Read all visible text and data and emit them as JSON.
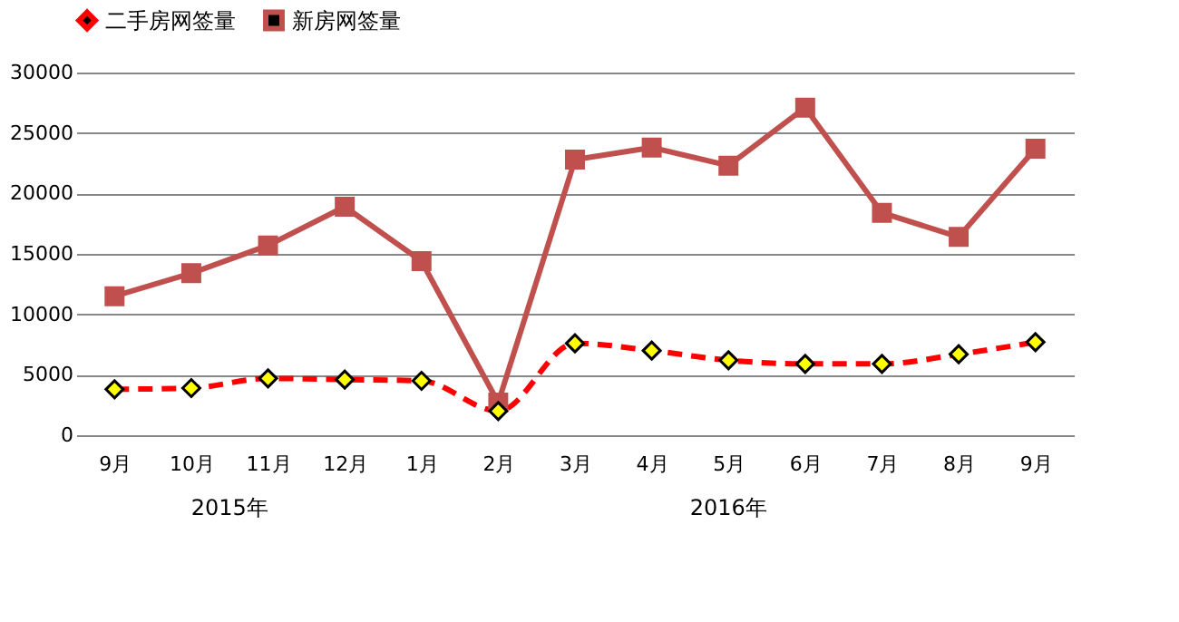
{
  "chart_data": {
    "type": "line",
    "categories": [
      "9月",
      "10月",
      "11月",
      "12月",
      "1月",
      "2月",
      "3月",
      "4月",
      "5月",
      "6月",
      "7月",
      "8月",
      "9月"
    ],
    "series": [
      {
        "name": "二手房网签量",
        "color": "#ff0000",
        "marker": "diamond",
        "line_style": "dashed",
        "values": [
          3800,
          3900,
          4700,
          4600,
          4500,
          2000,
          7600,
          7000,
          6200,
          5900,
          5900,
          6700,
          7700
        ]
      },
      {
        "name": "新房网签量",
        "color": "#c0504d",
        "marker": "square",
        "line_style": "solid",
        "values": [
          11500,
          13400,
          15700,
          18900,
          14400,
          2700,
          22800,
          23800,
          22300,
          27100,
          18400,
          16400,
          23700
        ]
      }
    ],
    "ylim": [
      0,
      30000
    ],
    "yticks": [
      0,
      5000,
      10000,
      15000,
      20000,
      25000,
      30000
    ],
    "grid": "y",
    "legend": "top",
    "annotations": [
      "2015年",
      "2016年"
    ]
  }
}
